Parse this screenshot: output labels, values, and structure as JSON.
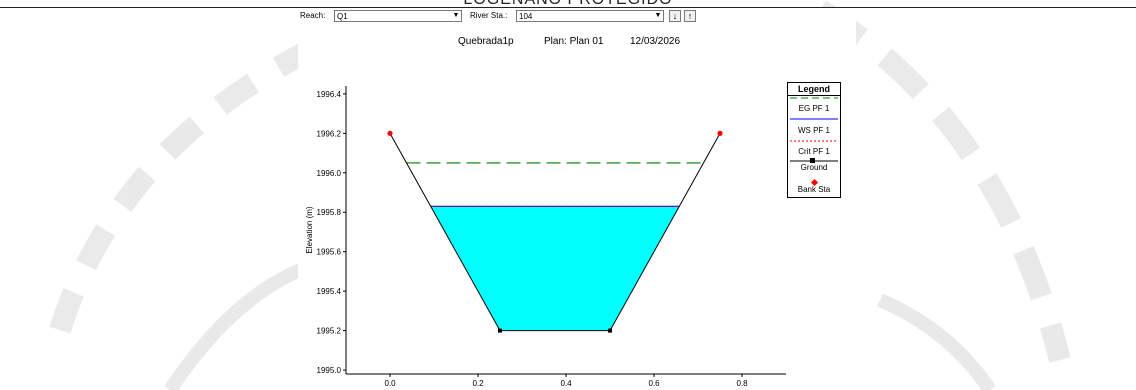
{
  "page": {
    "heading": "LOGENANO PROTEGIDO"
  },
  "toolbar": {
    "reach_label": "Reach:",
    "reach_value": "Q1",
    "river_sta_label": "River Sta.:",
    "river_sta_value": "104",
    "down_icon": "arrow-down-icon",
    "up_icon": "arrow-up-icon"
  },
  "plot_header": {
    "project": "Quebrada1p",
    "plan": "Plan: Plan 01",
    "date": "12/03/2026"
  },
  "legend": {
    "title": "Legend",
    "items": [
      "EG PF 1",
      "WS PF 1",
      "Crit PF 1",
      "Ground",
      "Bank Sta"
    ]
  },
  "colors": {
    "water_fill": "#00ffff",
    "ground_line": "#000000",
    "eg_line": "#008000",
    "ws_line": "#0000ff",
    "crit_line": "#ff0000",
    "bank_marker": "#ff0000"
  },
  "chart_data": {
    "type": "line",
    "title": "",
    "xlabel": "",
    "ylabel": "Elevation (m)",
    "xlim": [
      -0.1,
      0.9
    ],
    "ylim": [
      1994.98,
      1996.44
    ],
    "x_ticks": [
      "0.0",
      "0.2",
      "0.4",
      "0.6",
      "0.8"
    ],
    "y_ticks": [
      "1995.0",
      "1995.2",
      "1995.4",
      "1995.6",
      "1995.8",
      "1996.0",
      "1996.2",
      "1996.4"
    ],
    "x_tick_values": [
      0.0,
      0.2,
      0.4,
      0.6,
      0.8
    ],
    "y_tick_values": [
      1995.0,
      1995.2,
      1995.4,
      1995.6,
      1995.8,
      1996.0,
      1996.2,
      1996.4
    ],
    "ground": {
      "x": [
        0.0,
        0.25,
        0.5,
        0.75
      ],
      "y": [
        1996.2,
        1995.2,
        1995.2,
        1996.2
      ]
    },
    "bank_stations": {
      "x": [
        0.0,
        0.75
      ],
      "y": [
        1996.2,
        1996.2
      ]
    },
    "ground_points": {
      "x": [
        0.25,
        0.5
      ],
      "y": [
        1995.2,
        1995.2
      ]
    },
    "series": [
      {
        "name": "EG PF 1",
        "y": 1996.05
      },
      {
        "name": "WS PF 1",
        "y": 1995.83
      },
      {
        "name": "Crit PF 1",
        "y": 1995.83
      }
    ]
  }
}
